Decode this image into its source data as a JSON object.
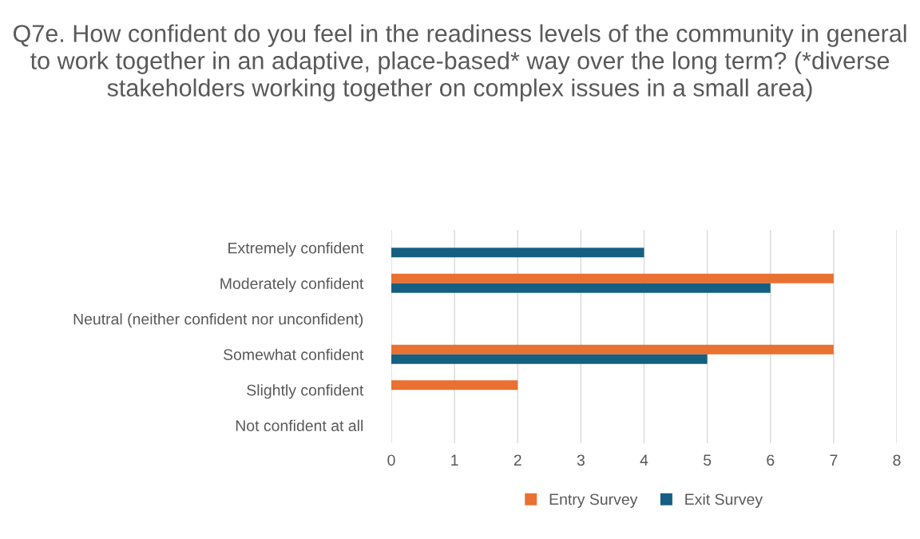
{
  "chart_data": {
    "type": "bar",
    "orientation": "horizontal",
    "title": "Q7e. How confident do you feel in the readiness levels of the community in general to work together in an adaptive, place-based* way over the long term? (*diverse stakeholders working together on complex issues in a small area)",
    "categories": [
      "Extremely confident",
      "Moderately confident",
      "Neutral (neither confident nor unconfident)",
      "Somewhat confident",
      "Slightly confident",
      "Not confident at all"
    ],
    "series": [
      {
        "name": "Entry Survey",
        "color": "#e97132",
        "values": [
          0,
          7,
          0,
          7,
          2,
          0
        ]
      },
      {
        "name": "Exit Survey",
        "color": "#156082",
        "values": [
          4,
          6,
          0,
          5,
          0,
          0
        ]
      }
    ],
    "xlim": [
      0,
      8
    ],
    "xticks": [
      0,
      1,
      2,
      3,
      4,
      5,
      6,
      7,
      8
    ],
    "grid": "x",
    "legend": "bottom"
  }
}
